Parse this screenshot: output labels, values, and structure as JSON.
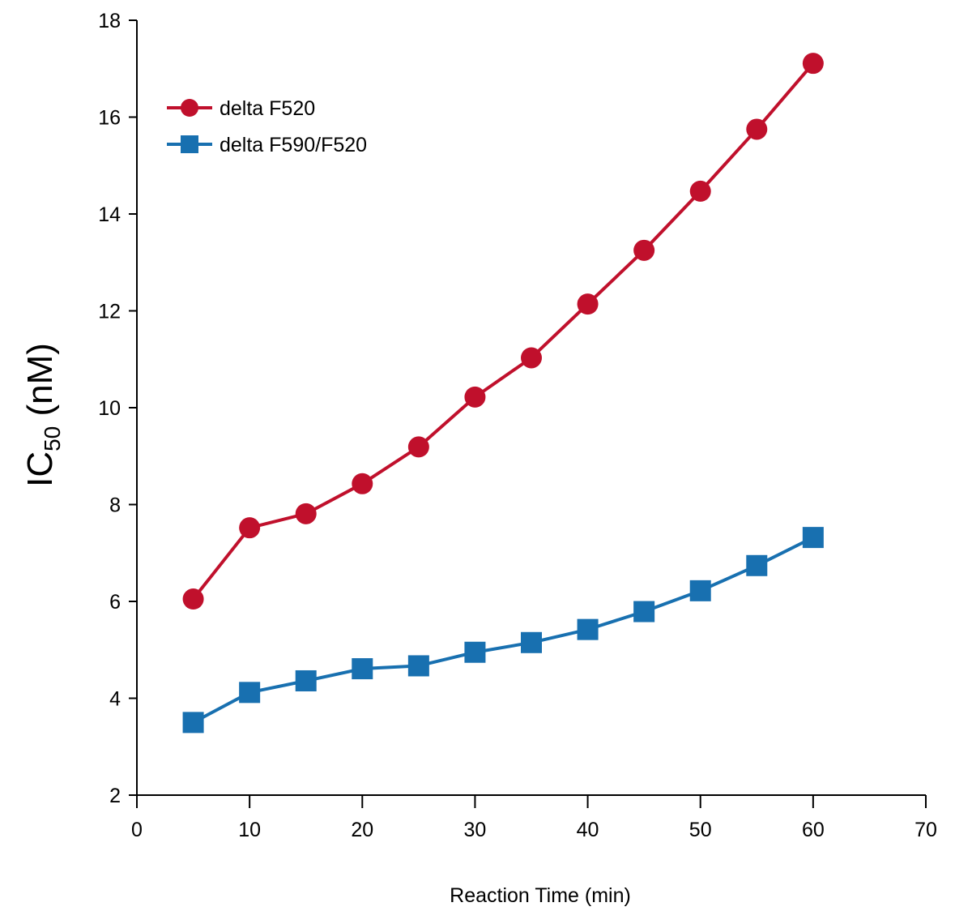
{
  "chart_data": {
    "type": "line",
    "title": "",
    "xlabel": "Reaction Time (min)",
    "ylabel": {
      "prefix": "IC",
      "subscript": "50",
      "suffix": " (nM)"
    },
    "xlim": [
      0,
      70
    ],
    "ylim": [
      2,
      18
    ],
    "x_ticks": [
      0,
      10,
      20,
      30,
      40,
      50,
      60,
      70
    ],
    "y_ticks": [
      2,
      4,
      6,
      8,
      10,
      12,
      14,
      16,
      18
    ],
    "grid": false,
    "legend_position": "top-left",
    "series": [
      {
        "name": "delta F520",
        "color": "#c0102c",
        "marker": "circle",
        "x": [
          5,
          10,
          15,
          20,
          25,
          30,
          35,
          40,
          45,
          50,
          55,
          60
        ],
        "y": [
          6.05,
          7.52,
          7.81,
          8.43,
          9.19,
          10.22,
          11.03,
          12.14,
          13.25,
          14.47,
          15.75,
          17.11
        ]
      },
      {
        "name": "delta F590/F520",
        "color": "#1870b0",
        "marker": "square",
        "x": [
          5,
          10,
          15,
          20,
          25,
          30,
          35,
          40,
          45,
          50,
          55,
          60
        ],
        "y": [
          3.5,
          4.12,
          4.36,
          4.61,
          4.67,
          4.95,
          5.15,
          5.42,
          5.79,
          6.22,
          6.74,
          7.32
        ]
      }
    ]
  }
}
